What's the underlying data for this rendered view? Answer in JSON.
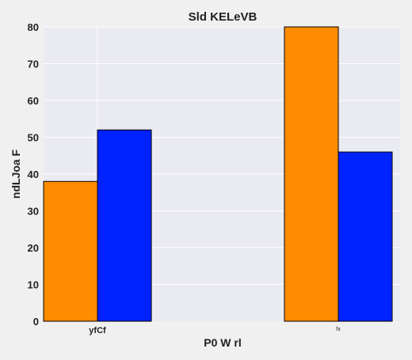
{
  "chart_data": {
    "type": "bar",
    "title": "Sld KELeVB",
    "xlabel": "P0  W rl",
    "ylabel": "ndLJoa F",
    "categories": [
      "yfCf",
      "fx"
    ],
    "series": [
      {
        "values": [
          38,
          80
        ],
        "color": "#ff8c00"
      },
      {
        "values": [
          52,
          46
        ],
        "color": "#0022ff"
      }
    ],
    "ylim": [
      0,
      80
    ],
    "yticks": [
      0,
      10,
      20,
      30,
      40,
      50,
      60,
      70,
      80
    ],
    "grid": true,
    "background": "#eaeaf2"
  }
}
